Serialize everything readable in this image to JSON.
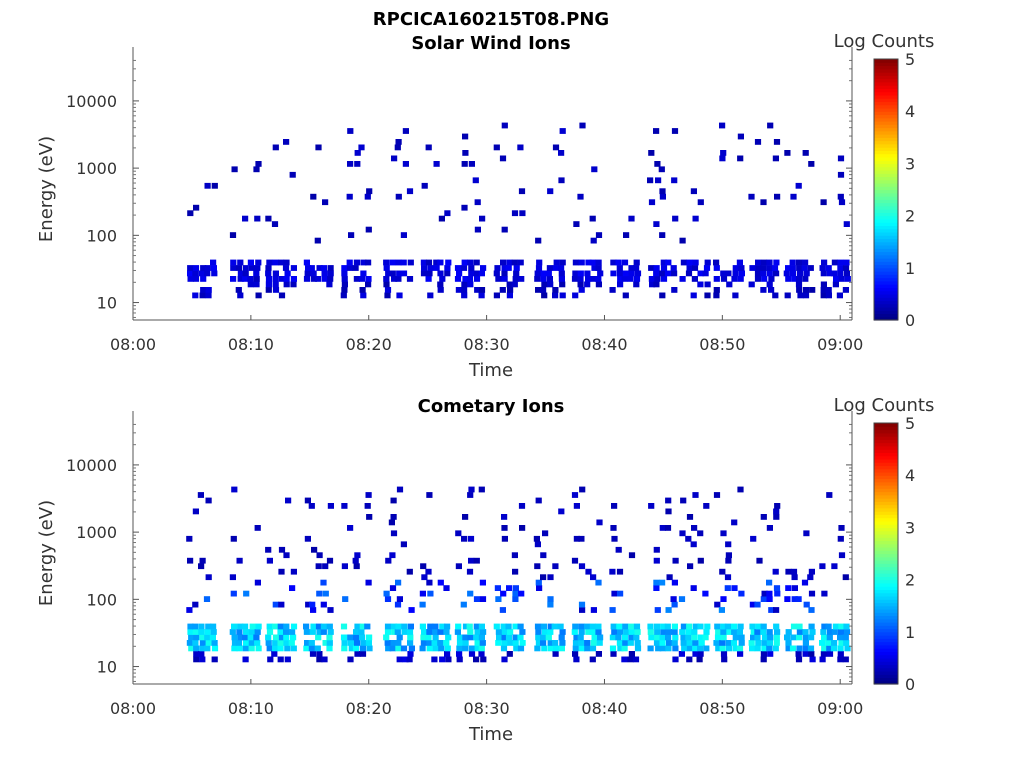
{
  "figure": {
    "title": "RPCICA160215T08.PNG"
  },
  "colormap": {
    "name": "jet",
    "stops": [
      "#00007f",
      "#0000ff",
      "#0080ff",
      "#00ffff",
      "#80ff80",
      "#ffff00",
      "#ff8000",
      "#ff0000",
      "#7f0000"
    ]
  },
  "chart_data": [
    {
      "type": "heatmap",
      "title": "Solar Wind Ions",
      "xlabel": "Time",
      "ylabel": "Energy (eV)",
      "x_ticks": [
        "08:00",
        "08:10",
        "08:20",
        "08:30",
        "08:40",
        "08:50",
        "09:00"
      ],
      "x_range_minutes": [
        0,
        61
      ],
      "y_scale": "log",
      "y_ticks": [
        "10",
        "100",
        "1000",
        "10000"
      ],
      "y_range": [
        5.5,
        45000
      ],
      "colorbar": {
        "label": "Log Counts",
        "range": [
          0,
          5
        ],
        "ticks": [
          "0",
          "1",
          "2",
          "3",
          "4",
          "5"
        ]
      },
      "bursts_start_minute": [
        4.5,
        8.2,
        11.2,
        14.4,
        17.6,
        21.2,
        24.3,
        27.3,
        30.6,
        34.0,
        37.2,
        40.4,
        43.6,
        46.3,
        49.2,
        52.2,
        55.2,
        58.2
      ],
      "band": {
        "energy_range_eV": [
          20,
          45
        ],
        "log_counts_range": [
          0.3,
          0.6
        ]
      },
      "sparse_energy_range_eV": [
        80,
        5000
      ],
      "max_log_counts": 0.6
    },
    {
      "type": "heatmap",
      "title": "Cometary Ions",
      "xlabel": "Time",
      "ylabel": "Energy (eV)",
      "x_ticks": [
        "08:00",
        "08:10",
        "08:20",
        "08:30",
        "08:40",
        "08:50",
        "09:00"
      ],
      "x_range_minutes": [
        0,
        61
      ],
      "y_scale": "log",
      "y_ticks": [
        "10",
        "100",
        "1000",
        "10000"
      ],
      "y_range": [
        5.5,
        45000
      ],
      "colorbar": {
        "label": "Log Counts",
        "range": [
          0,
          5
        ],
        "ticks": [
          "0",
          "1",
          "2",
          "3",
          "4",
          "5"
        ]
      },
      "bursts_start_minute": [
        4.5,
        8.2,
        11.2,
        14.4,
        17.6,
        21.2,
        24.3,
        27.3,
        30.6,
        34.0,
        37.2,
        40.4,
        43.6,
        46.3,
        49.2,
        52.2,
        55.2,
        58.2
      ],
      "band": {
        "energy_range_eV": [
          18,
          45
        ],
        "log_counts_range": [
          1.2,
          2.0
        ]
      },
      "sparse_energy_range_eV": [
        60,
        5000
      ],
      "max_log_counts": 2.0
    }
  ]
}
